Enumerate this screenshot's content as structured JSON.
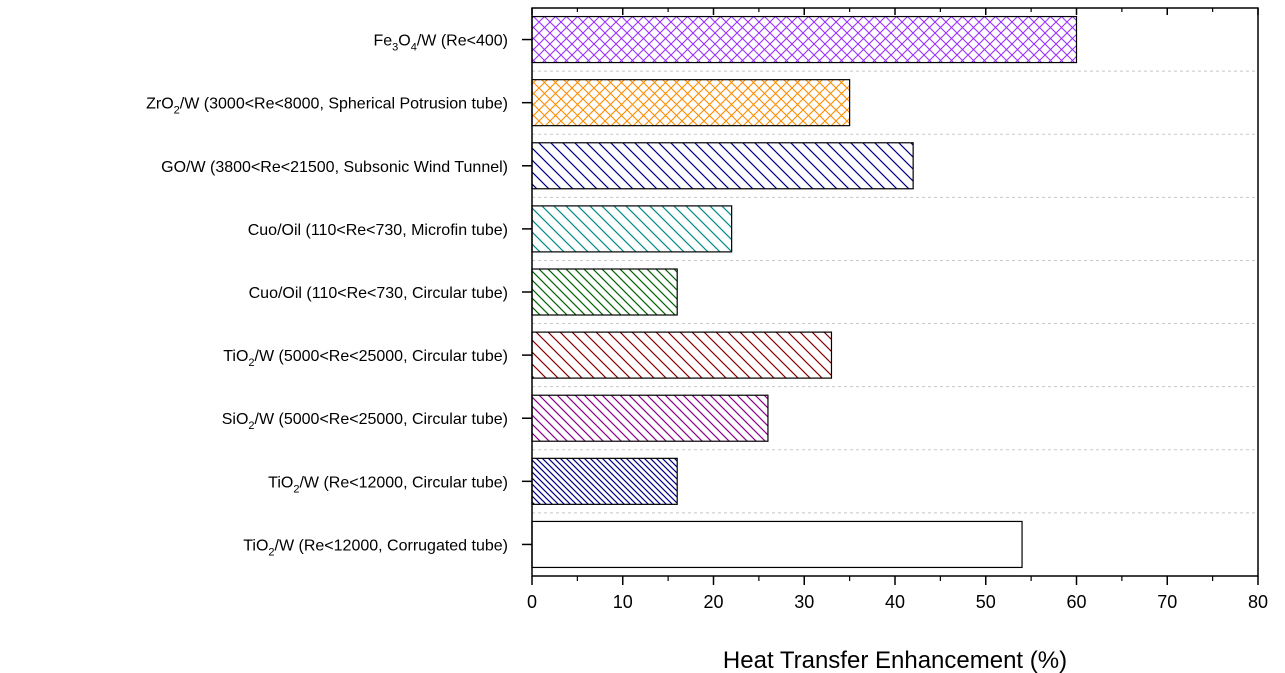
{
  "chart_data": {
    "type": "bar",
    "orientation": "horizontal",
    "title": "",
    "xlabel": "Heat Transfer Enhancement (%)",
    "ylabel": "",
    "xlim": [
      0,
      80
    ],
    "xticks": [
      0,
      10,
      20,
      30,
      40,
      50,
      60,
      70,
      80
    ],
    "grid": "horizontal dashed",
    "legend": "none",
    "categories": [
      {
        "base": "Fe",
        "sub": "3",
        "mid": "O",
        "sub2": "4",
        "rest": "/W (Re<400)"
      },
      {
        "base": "ZrO",
        "sub": "2",
        "mid": "",
        "sub2": "",
        "rest": "/W (3000<Re<8000, Spherical Potrusion tube)"
      },
      {
        "base": "GO/W (3800<Re<21500, Subsonic Wind Tunnel)",
        "sub": "",
        "mid": "",
        "sub2": "",
        "rest": ""
      },
      {
        "base": "Cuo/Oil (110<Re<730, Microfin tube)",
        "sub": "",
        "mid": "",
        "sub2": "",
        "rest": ""
      },
      {
        "base": "Cuo/Oil (110<Re<730, Circular tube)",
        "sub": "",
        "mid": "",
        "sub2": "",
        "rest": ""
      },
      {
        "base": "TiO",
        "sub": "2",
        "mid": "",
        "sub2": "",
        "rest": "/W (5000<Re<25000, Circular tube)"
      },
      {
        "base": "SiO",
        "sub": "2",
        "mid": "",
        "sub2": "",
        "rest": "/W (5000<Re<25000, Circular tube)"
      },
      {
        "base": "TiO",
        "sub": "2",
        "mid": "",
        "sub2": "",
        "rest": "/W (Re<12000, Circular tube)"
      },
      {
        "base": "TiO",
        "sub": "2",
        "mid": "",
        "sub2": "",
        "rest": "/W (Re<12000, Corrugated tube)"
      }
    ],
    "values": [
      60,
      35,
      42,
      22,
      16,
      33,
      26,
      16,
      54
    ],
    "colors": [
      "#9b30ff",
      "#ff8c00",
      "#00008b",
      "#008b8b",
      "#006400",
      "#8b0000",
      "#8b008b",
      "#000080",
      "#000000"
    ],
    "patterns": [
      "crosshatch",
      "crosshatch",
      "diag-wide",
      "diag-wide",
      "diag-medium",
      "diag-wide",
      "diag-medium",
      "diag-dense",
      "none"
    ]
  }
}
